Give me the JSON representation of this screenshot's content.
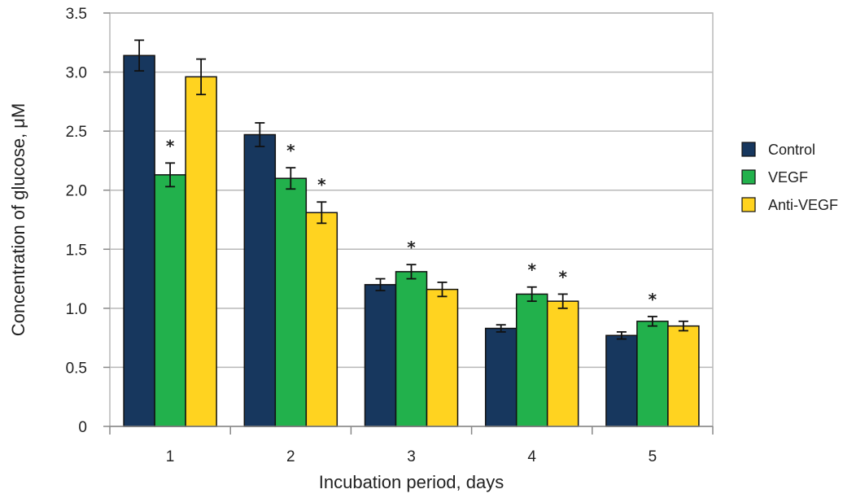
{
  "chart_data": {
    "type": "bar",
    "title": "",
    "xlabel": "Incubation period, days",
    "ylabel": "Concentration of glucose, μM",
    "ylim": [
      0,
      3.5
    ],
    "yticks": [
      0,
      0.5,
      1.0,
      1.5,
      2.0,
      2.5,
      3.0,
      3.5
    ],
    "ytick_labels": [
      "0",
      "0.5",
      "1.0",
      "1.5",
      "2.0",
      "2.5",
      "3.0",
      "3.5"
    ],
    "categories": [
      "1",
      "2",
      "3",
      "4",
      "5"
    ],
    "grid": true,
    "legend_position": "right",
    "significance_marker": "*",
    "series": [
      {
        "name": "Control",
        "color": "#17375e",
        "values": [
          3.14,
          2.47,
          1.2,
          0.83,
          0.77
        ],
        "errors": [
          0.13,
          0.1,
          0.05,
          0.03,
          0.03
        ],
        "significant": [
          false,
          false,
          false,
          false,
          false
        ]
      },
      {
        "name": "VEGF",
        "color": "#22b14c",
        "values": [
          2.13,
          2.1,
          1.31,
          1.12,
          0.89
        ],
        "errors": [
          0.1,
          0.09,
          0.06,
          0.06,
          0.04
        ],
        "significant": [
          true,
          true,
          true,
          true,
          true
        ]
      },
      {
        "name": "Anti-VEGF",
        "color": "#ffd320",
        "values": [
          2.96,
          1.81,
          1.16,
          1.06,
          0.85
        ],
        "errors": [
          0.15,
          0.09,
          0.06,
          0.06,
          0.04
        ],
        "significant": [
          false,
          true,
          false,
          true,
          false
        ]
      }
    ]
  }
}
